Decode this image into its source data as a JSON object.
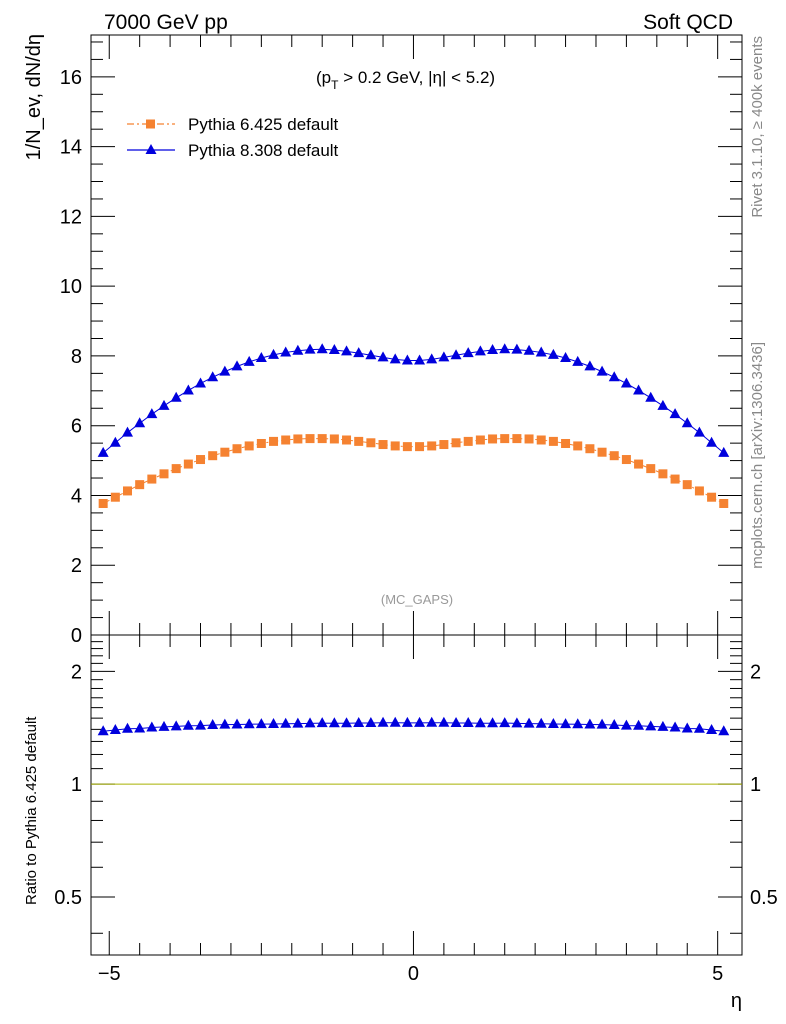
{
  "header": {
    "left": "7000 GeV pp",
    "right": "Soft QCD"
  },
  "cut_label": {
    "prefix": "(p",
    "subscript": "T",
    "rest": " > 0.2 GeV, |η| < 5.2)"
  },
  "watermark": "(MC_GAPS)",
  "side_text": {
    "rivet": "Rivet 3.1.10, ≥ 400k events",
    "mcplots": "mcplots.cern.ch [arXiv:1306.3436]"
  },
  "chart_data": [
    {
      "type": "scatter",
      "ylabel": "1/N_ev, dN/dη",
      "xlim": [
        -5.3,
        5.4
      ],
      "ylim": [
        0,
        17.2
      ],
      "yticks": [
        0,
        2,
        4,
        6,
        8,
        10,
        12,
        14,
        16
      ],
      "legend": "top-left",
      "x": [
        -5.1,
        -4.9,
        -4.7,
        -4.5,
        -4.3,
        -4.1,
        -3.9,
        -3.7,
        -3.5,
        -3.3,
        -3.1,
        -2.9,
        -2.7,
        -2.5,
        -2.3,
        -2.1,
        -1.9,
        -1.7,
        -1.5,
        -1.3,
        -1.1,
        -0.9,
        -0.7,
        -0.5,
        -0.3,
        -0.1,
        0.1,
        0.3,
        0.5,
        0.7,
        0.9,
        1.1,
        1.3,
        1.5,
        1.7,
        1.9,
        2.1,
        2.3,
        2.5,
        2.7,
        2.9,
        3.1,
        3.3,
        3.5,
        3.7,
        3.9,
        4.1,
        4.3,
        4.5,
        4.7,
        4.9,
        5.1
      ],
      "series": [
        {
          "name": "Pythia 6.425 default",
          "color": "#f58231",
          "marker": "square",
          "values": [
            3.77,
            3.95,
            4.13,
            4.31,
            4.47,
            4.62,
            4.77,
            4.9,
            5.03,
            5.14,
            5.24,
            5.34,
            5.42,
            5.49,
            5.55,
            5.59,
            5.62,
            5.63,
            5.63,
            5.62,
            5.59,
            5.55,
            5.51,
            5.46,
            5.42,
            5.4,
            5.4,
            5.42,
            5.46,
            5.51,
            5.55,
            5.59,
            5.62,
            5.63,
            5.63,
            5.62,
            5.59,
            5.55,
            5.49,
            5.42,
            5.34,
            5.24,
            5.14,
            5.03,
            4.9,
            4.77,
            4.62,
            4.47,
            4.31,
            4.13,
            3.95,
            3.77
          ]
        },
        {
          "name": "Pythia 8.308 default",
          "color": "#0000dd",
          "marker": "triangle",
          "values": [
            5.22,
            5.51,
            5.8,
            6.07,
            6.33,
            6.57,
            6.8,
            7.01,
            7.21,
            7.39,
            7.55,
            7.7,
            7.83,
            7.94,
            8.03,
            8.1,
            8.15,
            8.18,
            8.19,
            8.17,
            8.13,
            8.08,
            8.02,
            7.96,
            7.9,
            7.87,
            7.87,
            7.9,
            7.96,
            8.02,
            8.08,
            8.13,
            8.17,
            8.19,
            8.18,
            8.15,
            8.1,
            8.03,
            7.94,
            7.83,
            7.7,
            7.55,
            7.39,
            7.21,
            7.01,
            6.8,
            6.57,
            6.33,
            6.07,
            5.8,
            5.51,
            5.22
          ]
        }
      ]
    },
    {
      "type": "scatter",
      "xlabel": "η",
      "ylabel": "Ratio to Pythia 6.425 default",
      "log_y": true,
      "ylim": [
        0.35,
        2.5
      ],
      "yticks": [
        0.5,
        1,
        2
      ],
      "ytick_labels": [
        "0.5",
        "1",
        "2"
      ],
      "xticks": [
        -5,
        0,
        5
      ],
      "xtick_labels": [
        "−5",
        "0",
        "5"
      ],
      "reference_line": 1,
      "reference_color": "#a6b000",
      "series": [
        {
          "name": "Pythia 8.308 default",
          "color": "#0000dd",
          "marker": "triangle",
          "values": [
            1.384,
            1.395,
            1.405,
            1.408,
            1.416,
            1.422,
            1.426,
            1.431,
            1.433,
            1.438,
            1.441,
            1.442,
            1.445,
            1.446,
            1.447,
            1.449,
            1.45,
            1.453,
            1.455,
            1.454,
            1.454,
            1.456,
            1.456,
            1.458,
            1.458,
            1.457,
            1.457,
            1.458,
            1.458,
            1.456,
            1.456,
            1.454,
            1.454,
            1.455,
            1.453,
            1.45,
            1.449,
            1.447,
            1.446,
            1.445,
            1.442,
            1.441,
            1.438,
            1.433,
            1.431,
            1.426,
            1.422,
            1.416,
            1.408,
            1.405,
            1.395,
            1.384
          ]
        }
      ]
    }
  ]
}
